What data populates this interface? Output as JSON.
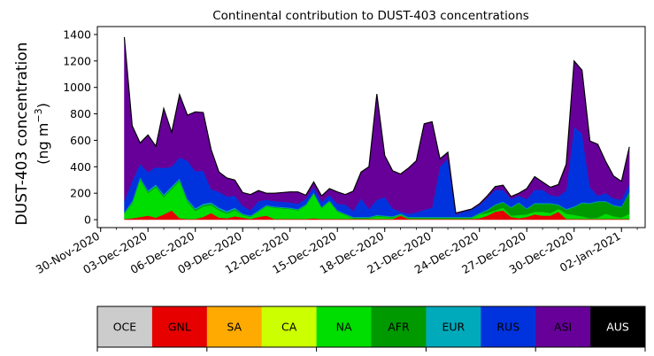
{
  "chart_data": {
    "type": "area",
    "stacked": true,
    "title": "Continental contribution to DUST-403 concentrations",
    "ylabel_line1": "DUST-403 concentration",
    "ylabel_line2_prefix": "(ng m",
    "ylabel_line2_sup": "−3",
    "ylabel_line2_suffix": ")",
    "ylim": [
      -60,
      1460
    ],
    "yticks": [
      0,
      200,
      400,
      600,
      800,
      1000,
      1200,
      1400
    ],
    "xlim": [
      "2020-11-29T19:00",
      "2021-01-03T12:00"
    ],
    "x_major_ticks": [
      {
        "date": "2020-11-30",
        "label": "30-Nov-2020"
      },
      {
        "date": "2020-12-03",
        "label": "03-Dec-2020"
      },
      {
        "date": "2020-12-06",
        "label": "06-Dec-2020"
      },
      {
        "date": "2020-12-09",
        "label": "09-Dec-2020"
      },
      {
        "date": "2020-12-12",
        "label": "12-Dec-2020"
      },
      {
        "date": "2020-12-15",
        "label": "15-Dec-2020"
      },
      {
        "date": "2020-12-18",
        "label": "18-Dec-2020"
      },
      {
        "date": "2020-12-21",
        "label": "21-Dec-2020"
      },
      {
        "date": "2020-12-24",
        "label": "24-Dec-2020"
      },
      {
        "date": "2020-12-27",
        "label": "27-Dec-2020"
      },
      {
        "date": "2020-12-30",
        "label": "30-Dec-2020"
      },
      {
        "date": "2021-01-02",
        "label": "02-Jan-2021"
      }
    ],
    "x": [
      "2020-12-01T12:00",
      "2020-12-02T00:00",
      "2020-12-02T12:00",
      "2020-12-03T00:00",
      "2020-12-03T12:00",
      "2020-12-04T00:00",
      "2020-12-04T12:00",
      "2020-12-05T00:00",
      "2020-12-05T12:00",
      "2020-12-06T00:00",
      "2020-12-06T12:00",
      "2020-12-07T00:00",
      "2020-12-07T12:00",
      "2020-12-08T00:00",
      "2020-12-08T12:00",
      "2020-12-09T00:00",
      "2020-12-09T12:00",
      "2020-12-10T00:00",
      "2020-12-10T12:00",
      "2020-12-11T00:00",
      "2020-12-11T12:00",
      "2020-12-12T00:00",
      "2020-12-12T12:00",
      "2020-12-13T00:00",
      "2020-12-13T12:00",
      "2020-12-14T00:00",
      "2020-12-14T12:00",
      "2020-12-15T00:00",
      "2020-12-15T12:00",
      "2020-12-16T00:00",
      "2020-12-16T12:00",
      "2020-12-17T00:00",
      "2020-12-17T12:00",
      "2020-12-18T00:00",
      "2020-12-18T12:00",
      "2020-12-19T00:00",
      "2020-12-19T12:00",
      "2020-12-20T00:00",
      "2020-12-20T12:00",
      "2020-12-21T00:00",
      "2020-12-21T12:00",
      "2020-12-22T00:00",
      "2020-12-22T12:00",
      "2020-12-23T00:00",
      "2020-12-23T12:00",
      "2020-12-24T00:00",
      "2020-12-24T12:00",
      "2020-12-25T00:00",
      "2020-12-25T12:00",
      "2020-12-26T00:00",
      "2020-12-26T12:00",
      "2020-12-27T00:00",
      "2020-12-27T12:00",
      "2020-12-28T00:00",
      "2020-12-28T12:00",
      "2020-12-29T00:00",
      "2020-12-29T12:00",
      "2020-12-30T00:00",
      "2020-12-30T12:00",
      "2020-12-31T00:00",
      "2020-12-31T12:00",
      "2021-01-01T00:00",
      "2021-01-01T12:00",
      "2021-01-02T00:00",
      "2021-01-02T12:00"
    ],
    "series": [
      {
        "name": "OCE",
        "color": "#cccccc",
        "values": [
          0,
          0,
          0,
          0,
          0,
          0,
          0,
          0,
          0,
          0,
          0,
          0,
          0,
          0,
          0,
          0,
          0,
          0,
          0,
          0,
          0,
          0,
          0,
          0,
          0,
          0,
          0,
          0,
          0,
          0,
          0,
          0,
          0,
          0,
          0,
          0,
          0,
          0,
          0,
          0,
          0,
          0,
          0,
          0,
          0,
          0,
          0,
          0,
          0,
          0,
          0,
          0,
          0,
          0,
          0,
          0,
          0,
          0,
          0,
          0,
          0,
          0,
          0,
          0,
          0
        ]
      },
      {
        "name": "GNL",
        "color": "#e60000",
        "values": [
          5,
          10,
          20,
          30,
          15,
          40,
          70,
          10,
          5,
          5,
          20,
          50,
          15,
          10,
          25,
          15,
          5,
          20,
          30,
          5,
          5,
          5,
          5,
          5,
          10,
          5,
          5,
          5,
          5,
          5,
          5,
          5,
          5,
          5,
          5,
          30,
          5,
          5,
          5,
          5,
          5,
          5,
          5,
          5,
          5,
          10,
          30,
          60,
          70,
          20,
          10,
          20,
          40,
          30,
          30,
          60,
          5,
          5,
          5,
          5,
          5,
          5,
          5,
          5,
          5
        ]
      },
      {
        "name": "SA",
        "color": "#ffaa00",
        "values": [
          0,
          0,
          0,
          0,
          0,
          0,
          0,
          0,
          0,
          0,
          0,
          0,
          0,
          0,
          0,
          0,
          0,
          0,
          0,
          0,
          0,
          0,
          0,
          0,
          0,
          0,
          0,
          0,
          0,
          0,
          0,
          0,
          0,
          0,
          0,
          0,
          0,
          0,
          0,
          0,
          0,
          0,
          0,
          0,
          0,
          0,
          0,
          0,
          0,
          0,
          0,
          0,
          0,
          0,
          0,
          0,
          0,
          0,
          0,
          0,
          0,
          0,
          0,
          0,
          0
        ]
      },
      {
        "name": "CA",
        "color": "#ccff00",
        "values": [
          0,
          0,
          0,
          0,
          0,
          0,
          0,
          0,
          0,
          0,
          0,
          0,
          0,
          0,
          0,
          0,
          0,
          0,
          0,
          0,
          0,
          0,
          0,
          0,
          0,
          0,
          0,
          0,
          0,
          0,
          0,
          0,
          0,
          0,
          0,
          0,
          0,
          0,
          0,
          0,
          0,
          0,
          0,
          0,
          0,
          0,
          0,
          0,
          0,
          0,
          0,
          0,
          0,
          0,
          0,
          0,
          0,
          0,
          0,
          0,
          0,
          0,
          0,
          0,
          0
        ]
      },
      {
        "name": "NA",
        "color": "#00dd00",
        "values": [
          40,
          110,
          280,
          170,
          230,
          130,
          160,
          280,
          130,
          60,
          80,
          60,
          55,
          35,
          45,
          20,
          15,
          40,
          70,
          85,
          80,
          75,
          65,
          100,
          185,
          80,
          130,
          55,
          30,
          5,
          5,
          5,
          20,
          15,
          10,
          5,
          5,
          5,
          5,
          5,
          5,
          5,
          5,
          5,
          5,
          30,
          20,
          10,
          20,
          10,
          25,
          20,
          20,
          30,
          20,
          20,
          40,
          30,
          20,
          5,
          10,
          40,
          20,
          10,
          40
        ]
      },
      {
        "name": "AFR",
        "color": "#009900",
        "values": [
          5,
          10,
          10,
          10,
          10,
          10,
          10,
          10,
          10,
          10,
          10,
          10,
          10,
          10,
          10,
          5,
          5,
          5,
          5,
          5,
          5,
          5,
          5,
          5,
          5,
          5,
          5,
          5,
          5,
          5,
          5,
          5,
          5,
          5,
          5,
          5,
          5,
          5,
          5,
          5,
          5,
          5,
          5,
          5,
          5,
          5,
          20,
          40,
          40,
          60,
          90,
          40,
          60,
          60,
          70,
          30,
          30,
          60,
          100,
          110,
          120,
          90,
          80,
          80,
          160
        ]
      },
      {
        "name": "EUR",
        "color": "#00aabb",
        "values": [
          5,
          10,
          10,
          10,
          10,
          10,
          10,
          10,
          10,
          10,
          10,
          10,
          10,
          10,
          10,
          5,
          5,
          5,
          5,
          5,
          5,
          5,
          5,
          5,
          5,
          5,
          5,
          5,
          5,
          5,
          5,
          5,
          5,
          5,
          5,
          5,
          5,
          5,
          5,
          5,
          5,
          5,
          5,
          5,
          5,
          5,
          5,
          5,
          5,
          5,
          5,
          5,
          5,
          5,
          5,
          5,
          5,
          5,
          5,
          5,
          5,
          5,
          5,
          5,
          5
        ]
      },
      {
        "name": "RUS",
        "color": "#0033dd",
        "values": [
          85,
          150,
          100,
          140,
          130,
          200,
          150,
          160,
          290,
          280,
          250,
          100,
          120,
          110,
          90,
          60,
          40,
          70,
          40,
          40,
          40,
          40,
          40,
          40,
          40,
          40,
          40,
          50,
          70,
          45,
          140,
          60,
          115,
          140,
          60,
          15,
          25,
          35,
          55,
          70,
          380,
          440,
          20,
          40,
          55,
          60,
          90,
          110,
          90,
          60,
          50,
          70,
          100,
          100,
          60,
          60,
          140,
          600,
          520,
          120,
          40,
          60,
          50,
          50,
          60
        ]
      },
      {
        "name": "ASI",
        "color": "#660099",
        "values": [
          1240,
          420,
          160,
          280,
          160,
          450,
          260,
          475,
          345,
          450,
          440,
          300,
          150,
          140,
          120,
          100,
          120,
          80,
          50,
          60,
          70,
          80,
          90,
          30,
          40,
          45,
          50,
          90,
          75,
          150,
          200,
          320,
          800,
          315,
          285,
          285,
          345,
          390,
          650,
          650,
          60,
          50,
          10,
          5,
          5,
          10,
          15,
          25,
          35,
          20,
          20,
          80,
          100,
          60,
          60,
          90,
          200,
          500,
          480,
          350,
          390,
          240,
          170,
          140,
          280
        ]
      },
      {
        "name": "AUS",
        "color": "#000000",
        "values": [
          0,
          0,
          0,
          0,
          0,
          0,
          0,
          0,
          0,
          0,
          0,
          0,
          0,
          0,
          0,
          0,
          0,
          0,
          0,
          0,
          0,
          0,
          0,
          0,
          0,
          0,
          0,
          0,
          0,
          0,
          0,
          0,
          0,
          0,
          0,
          0,
          0,
          0,
          0,
          0,
          0,
          0,
          0,
          0,
          0,
          0,
          0,
          0,
          0,
          0,
          0,
          0,
          0,
          0,
          0,
          0,
          0,
          0,
          0,
          0,
          0,
          0,
          0,
          0,
          0
        ]
      }
    ],
    "legend_placement": "bottom colorbar",
    "grid": false
  }
}
